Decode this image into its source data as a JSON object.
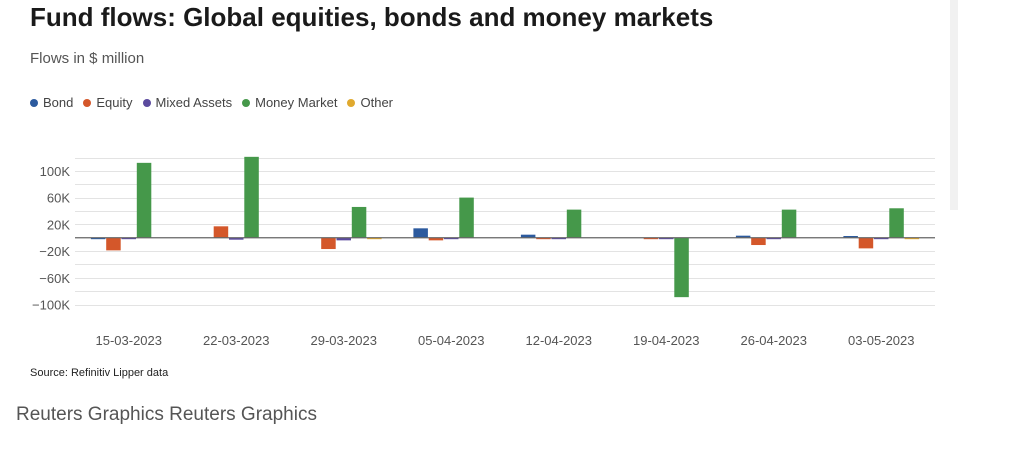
{
  "title": "Fund flows: Global equities, bonds and money markets",
  "subtitle": "Flows in $ million",
  "source": "Source: Refinitiv Lipper data",
  "credit": "Reuters Graphics Reuters Graphics",
  "chart_data": {
    "type": "bar",
    "title": "Fund flows: Global equities, bonds and money markets",
    "subtitle": "Flows in $ million",
    "xlabel": "",
    "ylabel": "",
    "categories": [
      "15-03-2023",
      "22-03-2023",
      "29-03-2023",
      "05-04-2023",
      "12-04-2023",
      "19-04-2023",
      "26-04-2023",
      "03-05-2023"
    ],
    "series": [
      {
        "name": "Bond",
        "color": "#2c5a9e",
        "values": [
          -1500,
          0,
          0,
          14000,
          4500,
          0,
          3000,
          2500
        ]
      },
      {
        "name": "Equity",
        "color": "#d4572a",
        "values": [
          -19000,
          17000,
          -17000,
          -4000,
          -1000,
          -2000,
          -11000,
          -16000
        ]
      },
      {
        "name": "Mixed Assets",
        "color": "#5b4a9e",
        "values": [
          -2000,
          -3000,
          -4000,
          -1000,
          -1000,
          -1000,
          -2000,
          -1500
        ]
      },
      {
        "name": "Money Market",
        "color": "#45984a",
        "values": [
          112000,
          121000,
          46000,
          60000,
          42000,
          -89000,
          42000,
          44000
        ]
      },
      {
        "name": "Other",
        "color": "#e0a92e",
        "values": [
          0,
          0,
          -1000,
          0,
          0,
          0,
          0,
          -1000
        ]
      }
    ],
    "y_ticks": [
      {
        "value": 100000,
        "label": "100K"
      },
      {
        "value": 60000,
        "label": "60K"
      },
      {
        "value": 20000,
        "label": "20K"
      },
      {
        "value": -20000,
        "label": "−20K"
      },
      {
        "value": -60000,
        "label": "−60K"
      },
      {
        "value": -100000,
        "label": "−100K"
      }
    ],
    "ylim": [
      -100000,
      120000
    ],
    "gridlines": [
      120000,
      100000,
      80000,
      60000,
      40000,
      20000,
      0,
      -20000,
      -40000,
      -60000,
      -80000,
      -100000
    ],
    "grid": true,
    "legend_position": "top-left"
  }
}
